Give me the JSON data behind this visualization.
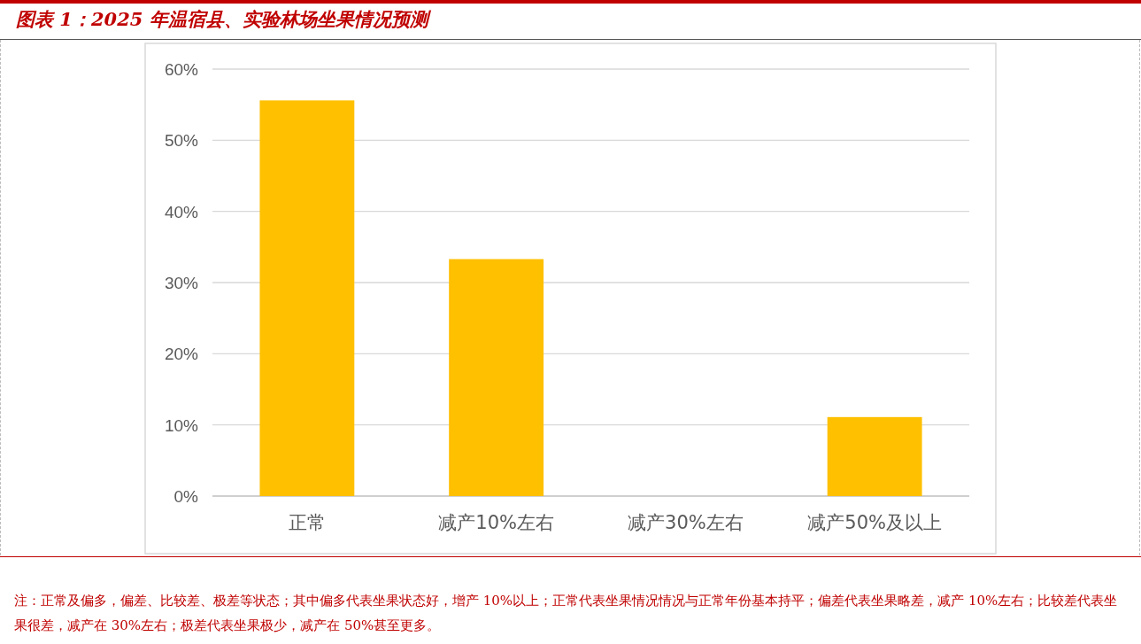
{
  "chart_data": {
    "type": "bar",
    "title": "图表 1：2025 年温宿县、实验林场坐果情况预测",
    "categories": [
      "正常",
      "减产10%左右",
      "减产30%左右",
      "减产50%及以上"
    ],
    "values": [
      55.6,
      33.3,
      0,
      11.1
    ],
    "color": "#ffc000",
    "ylim": [
      0,
      60
    ],
    "yticks": [
      {
        "value": 0,
        "label": "0%"
      },
      {
        "value": 10,
        "label": "10%"
      },
      {
        "value": 20,
        "label": "20%"
      },
      {
        "value": 30,
        "label": "30%"
      },
      {
        "value": 40,
        "label": "40%"
      },
      {
        "value": 50,
        "label": "50%"
      },
      {
        "value": 60,
        "label": "60%"
      }
    ],
    "grid": "y",
    "annotations": [
      "注：正常及偏多，偏差、比较差、极差等状态；其中偏多代表坐果状态好，增产 10%以上；正常代表坐果情况情况与正常年份基本持平；偏差代表坐果略差，减产 10%左右；比较差代表坐果很差，减产在 30%左右；极差代表坐果极少，减产在 50%甚至更多。"
    ]
  }
}
